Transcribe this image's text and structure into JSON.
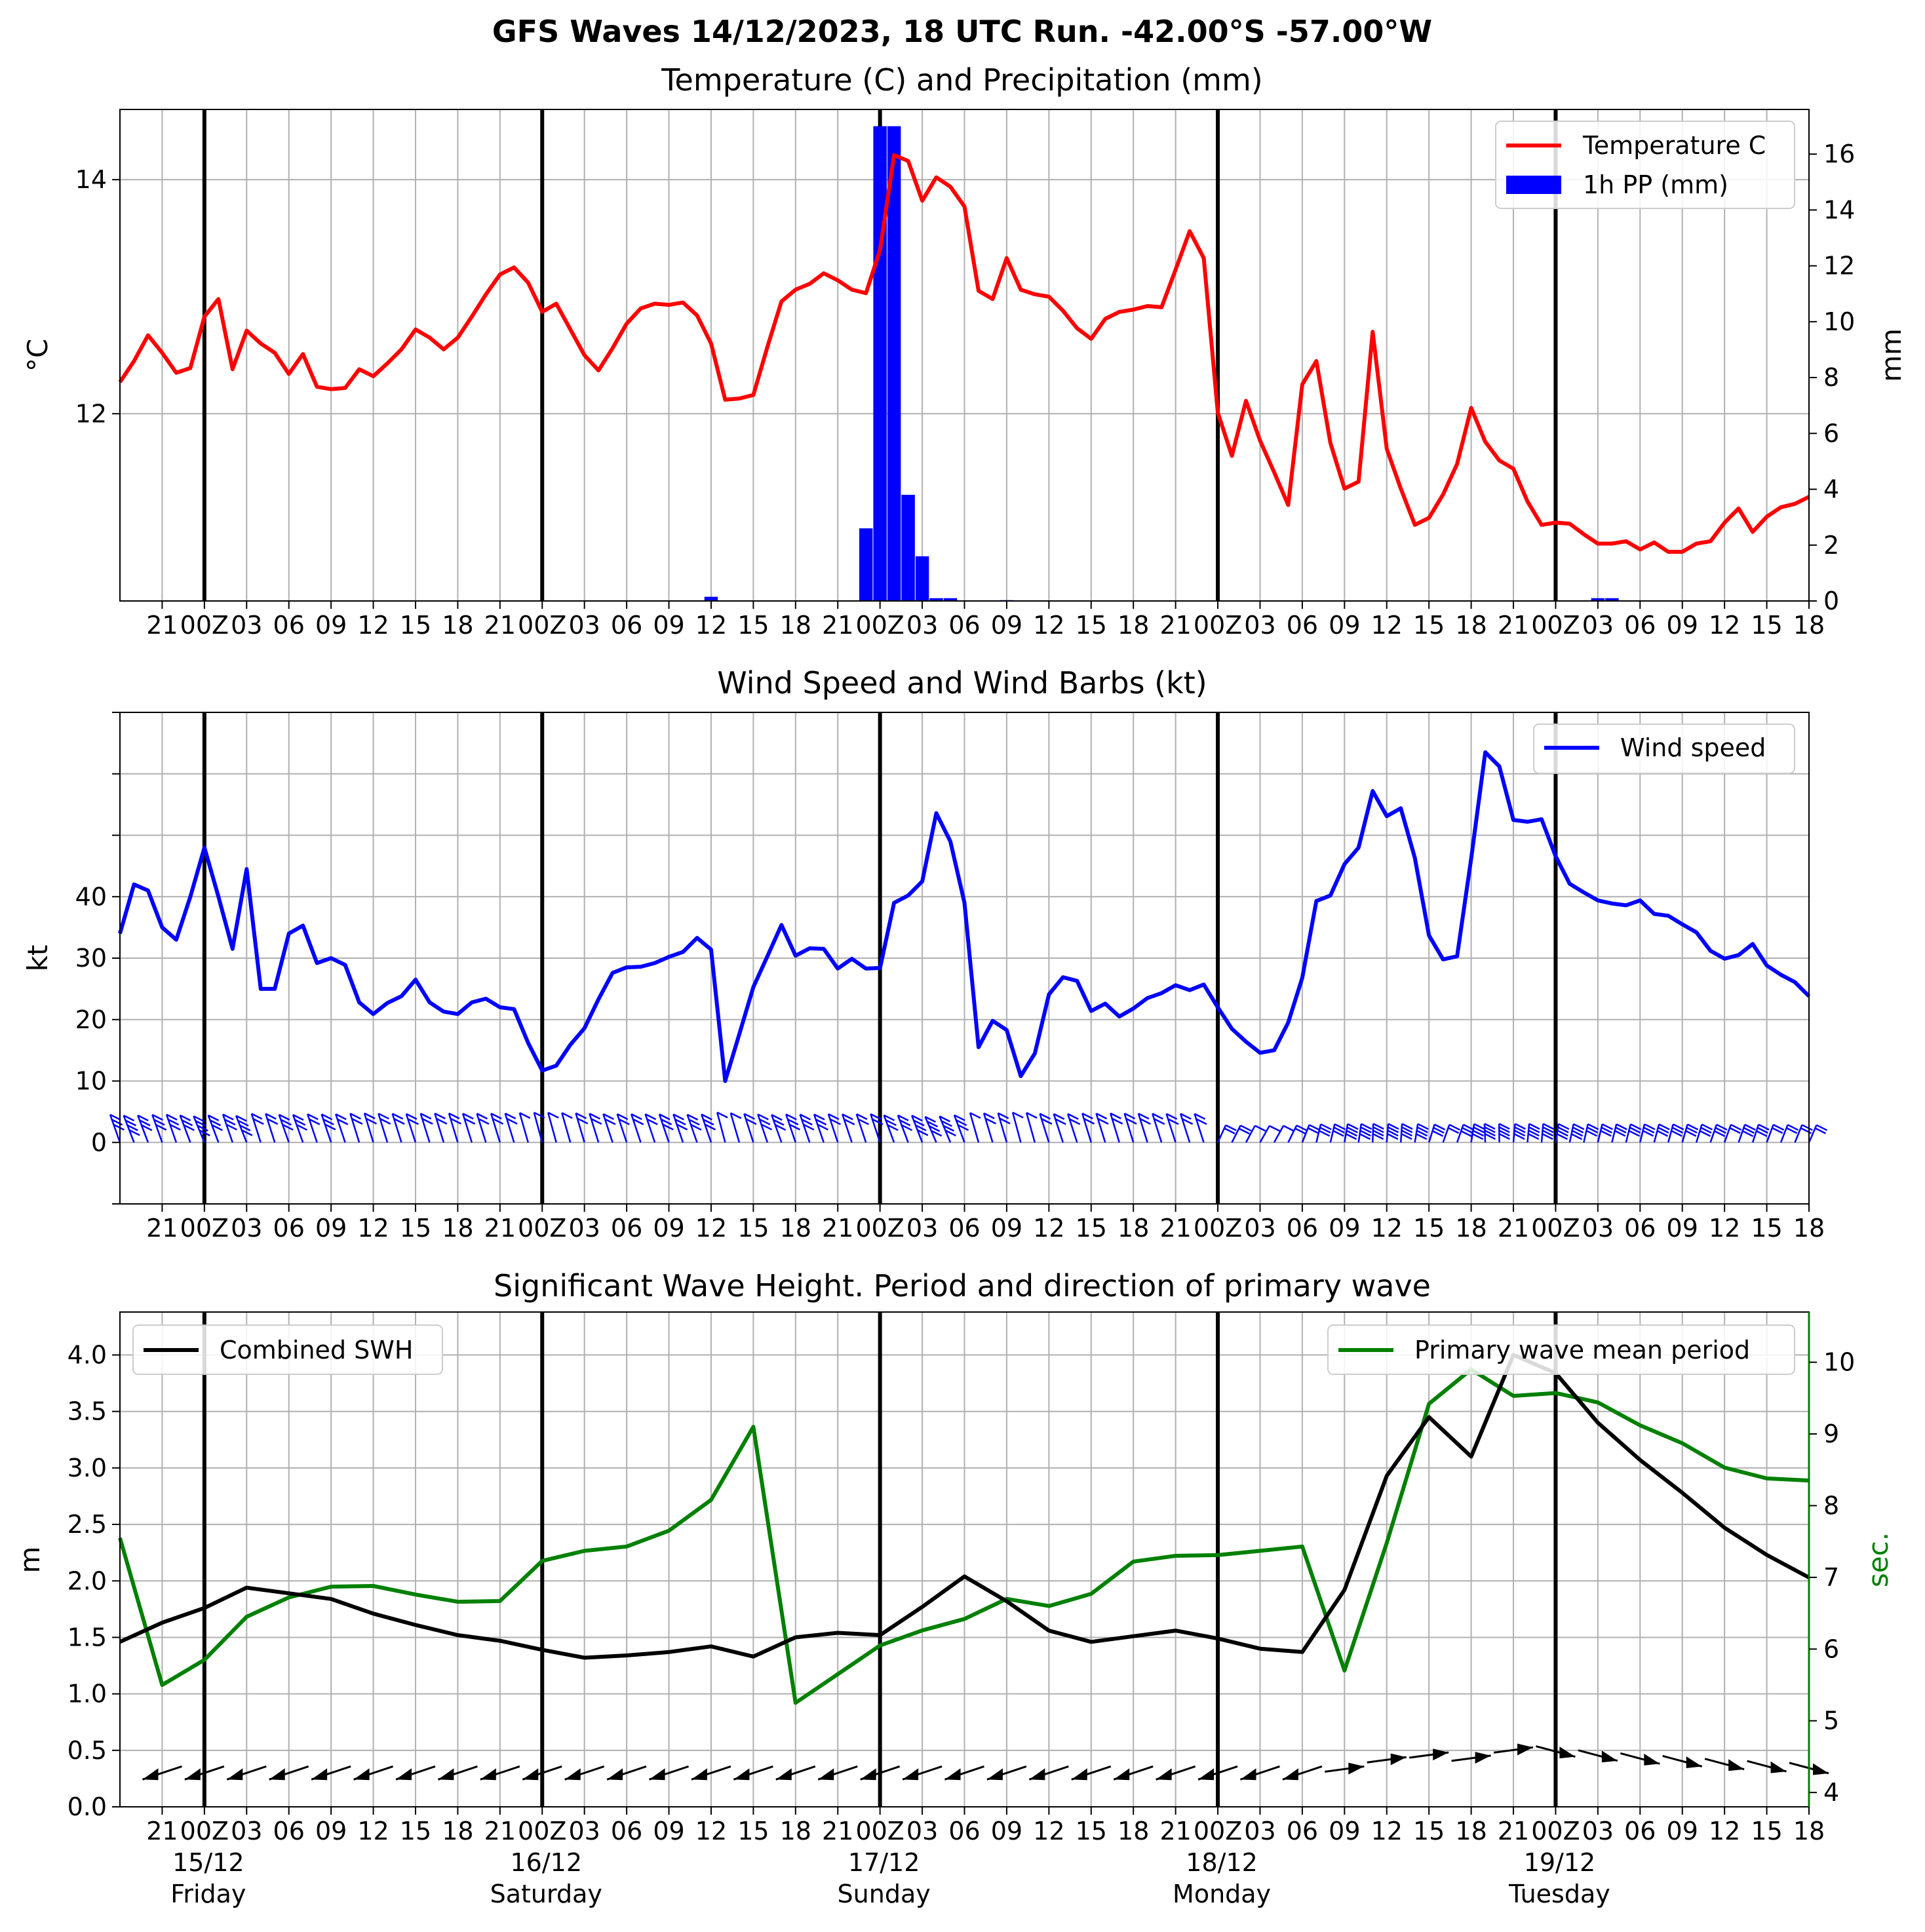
{
  "suptitle": "GFS Waves 14/12/2023, 18 UTC Run. -42.00°S -57.00°W",
  "colors": {
    "temperature": "#ff0000",
    "precip": "#0000ff",
    "wind": "#0000ff",
    "swh": "#000000",
    "period": "#008000"
  },
  "x_axis": {
    "unit": "hours since 14/12 18 UTC",
    "day_lines": [
      6,
      30,
      54,
      78,
      102
    ],
    "xlim": [
      0,
      120
    ],
    "hour_tick_labels": [
      "21",
      "00Z",
      "03",
      "06",
      "09",
      "12",
      "15",
      "18",
      "21",
      "00Z",
      "03",
      "06",
      "09",
      "12",
      "15",
      "18",
      "21",
      "00Z",
      "03",
      "06",
      "09",
      "12",
      "15",
      "18",
      "21",
      "00Z",
      "03",
      "06",
      "09",
      "12",
      "15",
      "18",
      "21",
      "00Z",
      "03",
      "06",
      "09",
      "12",
      "15",
      "18"
    ],
    "bottom_labels": {
      "hours": [
        "21",
        "00Z",
        "03",
        "06",
        "09",
        "12",
        "15",
        "18",
        "21",
        "00Z",
        "03",
        "06",
        "09",
        "12",
        "15",
        "18",
        "21",
        "00Z",
        "03",
        "06",
        "09",
        "12",
        "15",
        "18",
        "21",
        "00Z",
        "03",
        "06",
        "09",
        "12",
        "15",
        "18",
        "21",
        "00Z",
        "03",
        "06",
        "09",
        "12",
        "15",
        "18"
      ],
      "dates": [
        "15/12",
        "16/12",
        "17/12",
        "18/12",
        "19/12"
      ],
      "weekdays": [
        "Friday",
        "Saturday",
        "Sunday",
        "Monday",
        "Tuesday"
      ]
    }
  },
  "chart_data": [
    {
      "type": "line",
      "title": "Temperature (C) and Precipitation (mm)",
      "ylabel": "$^\\circ$C",
      "ylabel_display": "°C",
      "y2label": "mm",
      "ylim": [
        10.4,
        14.6
      ],
      "y2lim": [
        0,
        17.6
      ],
      "yticks": [
        12,
        14
      ],
      "y2ticks": [
        0,
        2,
        4,
        6,
        8,
        10,
        12,
        14,
        16
      ],
      "legend_location": "upper right",
      "series": [
        {
          "name": "Temperature C",
          "x": [
            0,
            1,
            2,
            3,
            4,
            5,
            6,
            7,
            8,
            9,
            10,
            11,
            12,
            13,
            14,
            15,
            16,
            17,
            18,
            19,
            20,
            21,
            22,
            23,
            24,
            25,
            26,
            27,
            28,
            29,
            30,
            31,
            32,
            33,
            34,
            35,
            36,
            37,
            38,
            39,
            40,
            41,
            42,
            43,
            44,
            45,
            46,
            47,
            48,
            49,
            50,
            51,
            52,
            53,
            54,
            55,
            56,
            57,
            58,
            59,
            60,
            61,
            62,
            63,
            64,
            65,
            66,
            67,
            68,
            69,
            70,
            71,
            72,
            73,
            74,
            75,
            76,
            77,
            78,
            79,
            80,
            81,
            82,
            83,
            84,
            85,
            86,
            87,
            88,
            89,
            90,
            91,
            92,
            93,
            94,
            95,
            96,
            97,
            98,
            99,
            100,
            101,
            102,
            103,
            104,
            105,
            106,
            107,
            108,
            109,
            110,
            111,
            112,
            113,
            114,
            115,
            116,
            117,
            118,
            119,
            120
          ],
          "values": [
            12.27,
            12.45,
            12.67,
            12.52,
            12.35,
            12.39,
            12.83,
            12.98,
            12.38,
            12.71,
            12.6,
            12.52,
            12.34,
            12.51,
            12.23,
            12.21,
            12.22,
            12.38,
            12.32,
            12.43,
            12.55,
            12.72,
            12.65,
            12.55,
            12.65,
            12.83,
            13.02,
            13.19,
            13.25,
            13.12,
            12.87,
            12.94,
            12.72,
            12.5,
            12.37,
            12.56,
            12.77,
            12.9,
            12.94,
            12.93,
            12.95,
            12.84,
            12.6,
            12.12,
            12.13,
            12.16,
            12.57,
            12.96,
            13.06,
            13.11,
            13.2,
            13.14,
            13.06,
            13.03,
            13.4,
            14.21,
            14.16,
            13.82,
            14.02,
            13.94,
            13.77,
            13.05,
            12.98,
            13.33,
            13.06,
            13.02,
            13.0,
            12.88,
            12.73,
            12.64,
            12.81,
            12.87,
            12.89,
            12.92,
            12.91,
            13.23,
            13.56,
            13.33,
            12.01,
            11.64,
            12.11,
            11.77,
            11.5,
            11.22,
            12.25,
            12.45,
            11.75,
            11.36,
            11.42,
            12.7,
            11.7,
            11.36,
            11.05,
            11.11,
            11.31,
            11.57,
            12.05,
            11.76,
            11.6,
            11.53,
            11.25,
            11.05,
            11.07,
            11.06,
            10.97,
            10.89,
            10.89,
            10.91,
            10.84,
            10.9,
            10.82,
            10.82,
            10.89,
            10.91,
            11.07,
            11.19,
            10.99,
            11.12,
            11.2,
            11.23,
            11.29
          ]
        },
        {
          "name": "1h PP (mm)",
          "type": "bar",
          "axis": "right",
          "x": [
            42,
            48,
            53,
            54,
            55,
            56,
            57,
            58,
            59,
            63,
            67,
            75,
            96,
            105,
            106
          ],
          "values": [
            0.15,
            0.02,
            2.6,
            17.0,
            17.0,
            3.8,
            1.6,
            0.1,
            0.1,
            0.03,
            0.02,
            0.02,
            0.02,
            0.1,
            0.1
          ]
        }
      ]
    },
    {
      "type": "line",
      "title": "Wind Speed and Wind Barbs (kt)",
      "ylabel": "kt",
      "ylim": [
        -10,
        70
      ],
      "yticks": [
        0,
        10,
        20,
        30,
        40
      ],
      "legend_location": "upper right",
      "barbs": "wind barbs along kt = 0, one per hour",
      "series": [
        {
          "name": "Wind speed",
          "x": [
            0,
            1,
            2,
            3,
            4,
            5,
            6,
            7,
            8,
            9,
            10,
            11,
            12,
            13,
            14,
            15,
            16,
            17,
            18,
            19,
            20,
            21,
            22,
            23,
            24,
            25,
            26,
            27,
            28,
            29,
            30,
            31,
            32,
            33,
            34,
            35,
            36,
            37,
            38,
            39,
            40,
            41,
            42,
            43,
            44,
            45,
            46,
            47,
            48,
            49,
            50,
            51,
            52,
            53,
            54,
            55,
            56,
            57,
            58,
            59,
            60,
            61,
            62,
            63,
            64,
            65,
            66,
            67,
            68,
            69,
            70,
            71,
            72,
            73,
            74,
            75,
            76,
            77,
            78,
            79,
            80,
            81,
            82,
            83,
            84,
            85,
            86,
            87,
            88,
            89,
            90,
            91,
            92,
            93,
            94,
            95,
            96,
            97,
            98,
            99,
            100,
            101,
            102,
            103,
            104,
            105,
            106,
            107,
            108,
            109,
            110,
            111,
            112,
            113,
            114,
            115,
            116,
            117,
            118,
            119,
            120
          ],
          "values": [
            34,
            42,
            41,
            35,
            33,
            40,
            48,
            40,
            31.5,
            44.5,
            25,
            25,
            34,
            35.3,
            29.2,
            30,
            28.9,
            22.8,
            20.9,
            22.7,
            23.8,
            26.5,
            22.8,
            21.3,
            20.9,
            22.8,
            23.4,
            22,
            21.7,
            16.2,
            11.7,
            12.5,
            15.9,
            18.6,
            23.3,
            27.6,
            28.5,
            28.6,
            29.2,
            30.2,
            31,
            33.3,
            31.4,
            10,
            17.6,
            25.3,
            30.3,
            35.4,
            30.4,
            31.6,
            31.5,
            28.3,
            29.9,
            28.3,
            28.4,
            39,
            40.2,
            42.5,
            53.6,
            49,
            39,
            15.5,
            19.8,
            18.3,
            10.8,
            14.5,
            24.1,
            26.9,
            26.3,
            21.4,
            22.6,
            20.5,
            21.8,
            23.5,
            24.3,
            25.6,
            24.8,
            25.7,
            22,
            18.5,
            16.4,
            14.6,
            15,
            19.5,
            26.8,
            39.3,
            40.2,
            45.3,
            48,
            57.2,
            53.1,
            54.4,
            46.3,
            33.7,
            29.8,
            30.3,
            46.2,
            63.5,
            61.2,
            52.5,
            52.2,
            52.6,
            46.6,
            42.1,
            40.7,
            39.4,
            38.9,
            38.6,
            39.4,
            37.2,
            36.9,
            35.5,
            34.2,
            31.2,
            29.9,
            30.5,
            32.3,
            28.8,
            27.3,
            26.1,
            23.8
          ]
        }
      ]
    },
    {
      "type": "line",
      "title": "Significant Wave Height. Period and direction of primary wave",
      "ylabel": "m",
      "y2label": "sec.",
      "ylim": [
        0,
        4.38
      ],
      "y2lim": [
        3.8,
        10.7
      ],
      "yticks": [
        0.0,
        0.5,
        1.0,
        1.5,
        2.0,
        2.5,
        3.0,
        3.5,
        4.0
      ],
      "y2ticks": [
        4,
        5,
        6,
        7,
        8,
        9,
        10
      ],
      "legend_locations": [
        "upper left",
        "upper right"
      ],
      "arrows": "primary wave direction arrows along 0.3 m, every 3 h",
      "series": [
        {
          "name": "Combined SWH",
          "x": [
            0,
            3,
            6,
            9,
            12,
            15,
            18,
            21,
            24,
            27,
            30,
            33,
            36,
            39,
            42,
            45,
            48,
            51,
            54,
            57,
            60,
            63,
            66,
            69,
            72,
            75,
            78,
            81,
            84,
            87,
            90,
            93,
            96,
            99,
            102,
            105,
            108,
            111,
            114,
            117,
            120
          ],
          "values": [
            1.46,
            1.63,
            1.76,
            1.94,
            1.89,
            1.84,
            1.71,
            1.61,
            1.52,
            1.47,
            1.39,
            1.32,
            1.34,
            1.37,
            1.42,
            1.33,
            1.5,
            1.54,
            1.52,
            1.77,
            2.04,
            1.82,
            1.56,
            1.46,
            1.51,
            1.56,
            1.49,
            1.4,
            1.37,
            1.92,
            2.93,
            3.45,
            3.1,
            4.0,
            3.84,
            3.4,
            3.07,
            2.78,
            2.47,
            2.23,
            2.03
          ]
        },
        {
          "name": "Primary wave mean period",
          "axis": "right",
          "x": [
            0,
            3,
            6,
            9,
            12,
            15,
            18,
            21,
            24,
            27,
            30,
            33,
            36,
            39,
            42,
            45,
            48,
            51,
            54,
            57,
            60,
            63,
            66,
            69,
            72,
            75,
            78,
            81,
            84,
            87,
            90,
            93,
            96,
            99,
            102,
            105,
            108,
            111,
            114,
            117,
            120
          ],
          "values": [
            7.55,
            5.5,
            5.85,
            6.45,
            6.72,
            6.87,
            6.88,
            6.76,
            6.66,
            6.67,
            7.23,
            7.37,
            7.43,
            7.65,
            8.08,
            9.1,
            5.25,
            5.65,
            6.05,
            6.26,
            6.42,
            6.7,
            6.6,
            6.77,
            7.22,
            7.3,
            7.31,
            7.37,
            7.43,
            5.7,
            7.48,
            9.42,
            9.9,
            9.53,
            9.57,
            9.44,
            9.12,
            8.87,
            8.53,
            8.38,
            8.35
          ]
        }
      ]
    }
  ]
}
